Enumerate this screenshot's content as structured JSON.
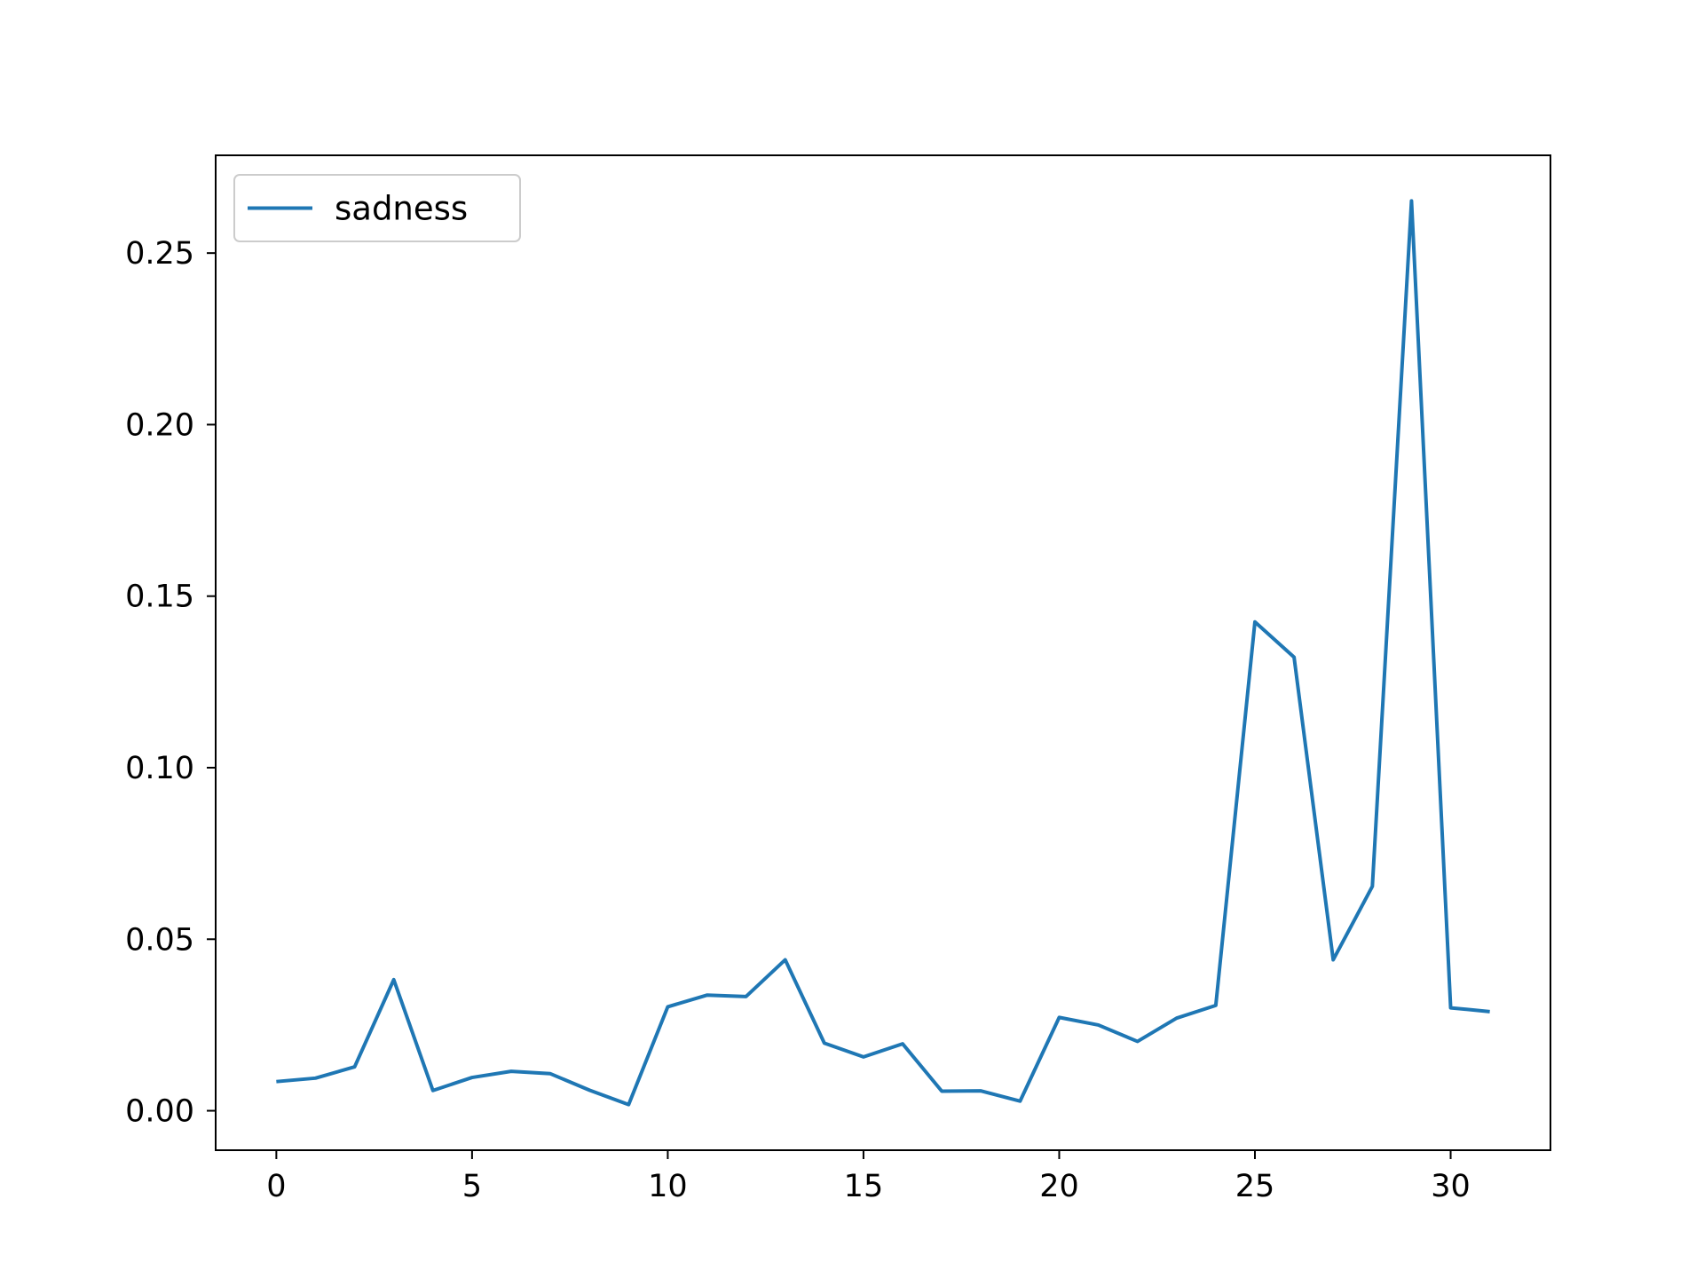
{
  "chart_data": {
    "type": "line",
    "title": "",
    "xlabel": "",
    "ylabel": "",
    "xlim": [
      -1.55,
      32.55
    ],
    "ylim": [
      -0.0115,
      0.2785
    ],
    "xticks": [
      0,
      5,
      10,
      15,
      20,
      25,
      30
    ],
    "xtick_labels": [
      "0",
      "5",
      "10",
      "15",
      "20",
      "25",
      "30"
    ],
    "yticks": [
      0.0,
      0.05,
      0.1,
      0.15,
      0.2,
      0.25
    ],
    "ytick_labels": [
      "0.00",
      "0.05",
      "0.10",
      "0.15",
      "0.20",
      "0.25"
    ],
    "grid": false,
    "legend": {
      "position": "upper-left"
    },
    "x": [
      0,
      1,
      2,
      3,
      4,
      5,
      6,
      7,
      8,
      9,
      10,
      11,
      12,
      13,
      14,
      15,
      16,
      17,
      18,
      19,
      20,
      21,
      22,
      23,
      24,
      25,
      26,
      27,
      28,
      29,
      30,
      31
    ],
    "series": [
      {
        "name": "sadness",
        "color": "#1f77b4",
        "values": [
          0.0085,
          0.0095,
          0.0128,
          0.0382,
          0.0059,
          0.0097,
          0.0115,
          0.0108,
          0.006,
          0.0018,
          0.0303,
          0.0337,
          0.0333,
          0.044,
          0.0197,
          0.0157,
          0.0195,
          0.0057,
          0.0058,
          0.0028,
          0.0272,
          0.025,
          0.0202,
          0.027,
          0.0307,
          0.1425,
          0.1322,
          0.044,
          0.0654,
          0.2652,
          0.03,
          0.0289
        ]
      }
    ]
  }
}
